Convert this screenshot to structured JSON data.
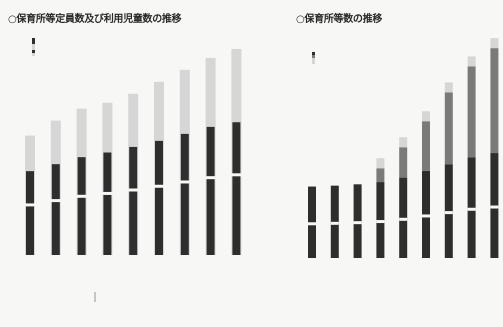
{
  "chart_data": [
    {
      "type": "bar",
      "title": "○保育所等定員数及び利用児童数の推移",
      "categories": [
        "",
        "",
        "",
        "",
        "",
        "",
        "",
        "",
        ""
      ],
      "series": [
        {
          "name": "",
          "values": [
            200,
            225,
            245,
            255,
            270,
            290,
            310,
            330,
            345
          ]
        },
        {
          "name": "",
          "values": [
            180,
            195,
            210,
            220,
            232,
            245,
            260,
            275,
            285
          ]
        }
      ],
      "ylim": [
        0,
        360
      ],
      "legend_entries": [
        "",
        "",
        "",
        "",
        "",
        ""
      ],
      "footer_label": "",
      "color_dark": "#2e2e2e",
      "color_light": "#d6d6d6"
    },
    {
      "type": "bar",
      "title": "○保育所等数の推移",
      "categories": [
        "",
        "",
        "",
        "",
        "",
        "",
        "",
        "",
        ""
      ],
      "series": [
        {
          "name": "",
          "values": [
            16000,
            16200,
            16500,
            17000,
            18000,
            19500,
            21000,
            22500,
            23500
          ]
        },
        {
          "name": "",
          "values": [
            0,
            0,
            0,
            500,
            1100,
            1800,
            2600,
            3300,
            3800
          ]
        }
      ],
      "ylim": [
        0,
        25000
      ],
      "legend_entries": [
        "",
        "",
        "",
        ""
      ],
      "note": "",
      "color_dark": "#2e2e2e",
      "color_mid": "#7a7a7a",
      "color_light": "#d6d6d6"
    }
  ]
}
